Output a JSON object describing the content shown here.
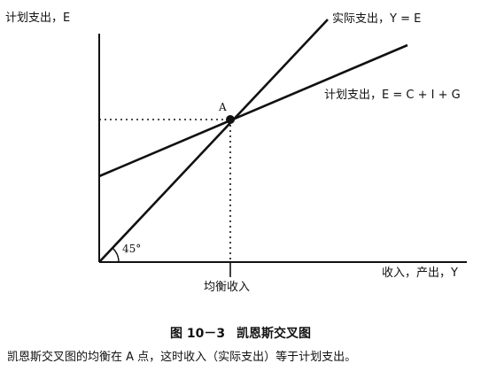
{
  "diagram": {
    "y_axis_label": "计划支出，E",
    "x_axis_label": "收入，产出，Y",
    "actual_line_label": "实际支出，Y = E",
    "planned_line_label": "计划支出，E = C + I + G",
    "point_label": "A",
    "angle_label": "45°",
    "equilibrium_label": "均衡收入"
  },
  "caption": {
    "figure_number": "图 10－3",
    "figure_title": "凯恩斯交叉图",
    "text": "凯恩斯交叉图的均衡在 A 点，这时收入（实际支出）等于计划支出。"
  }
}
